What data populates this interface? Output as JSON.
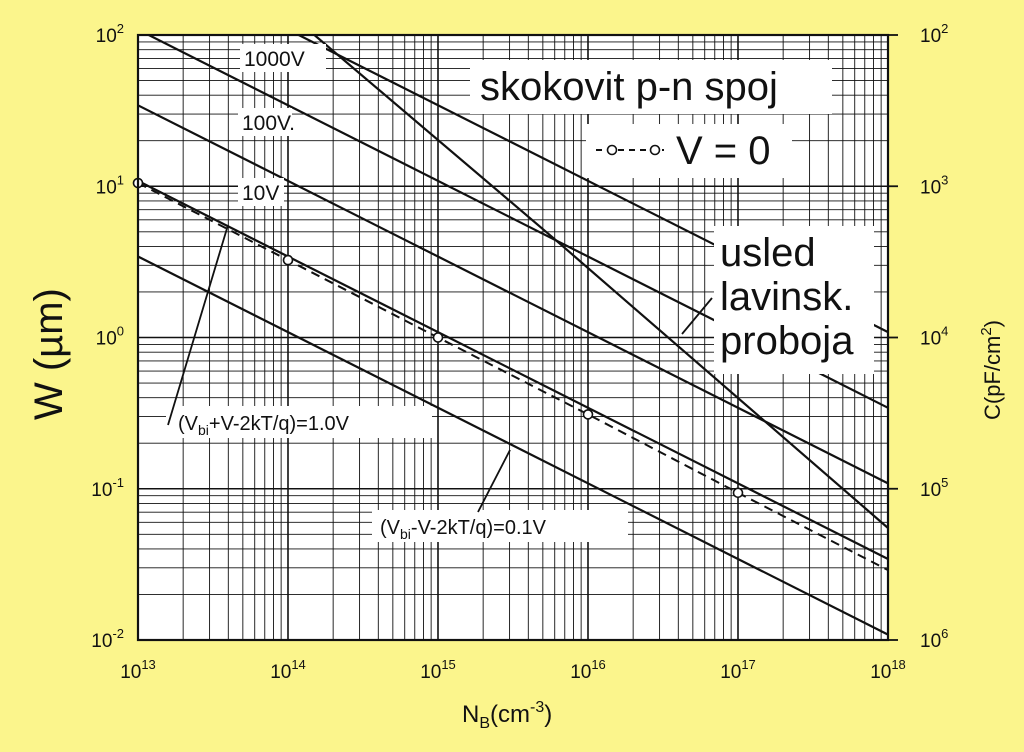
{
  "chart_data": {
    "type": "line",
    "title": "skokovit p-n spoj",
    "xlabel": "N_B(cm^-3)",
    "ylabel": "W (µm)",
    "y2label": "C(pF/cm^2)",
    "x_scale": "log",
    "y_scale": "log",
    "xlim": [
      10000000000000.0,
      1e+18
    ],
    "ylim": [
      0.01,
      100
    ],
    "grid": true,
    "x_ticks": [
      {
        "base": "10",
        "exp": "13"
      },
      {
        "base": "10",
        "exp": "14"
      },
      {
        "base": "10",
        "exp": "15"
      },
      {
        "base": "10",
        "exp": "16"
      },
      {
        "base": "10",
        "exp": "17"
      },
      {
        "base": "10",
        "exp": "18"
      }
    ],
    "y_ticks": [
      {
        "base": "10",
        "exp": "2"
      },
      {
        "base": "10",
        "exp": "1"
      },
      {
        "base": "10",
        "exp": "0"
      },
      {
        "base": "10",
        "exp": "-1"
      },
      {
        "base": "10",
        "exp": "-2"
      }
    ],
    "y2_ticks": [
      {
        "base": "10",
        "exp": "2"
      },
      {
        "base": "10",
        "exp": "3"
      },
      {
        "base": "10",
        "exp": "4"
      },
      {
        "base": "10",
        "exp": "5"
      },
      {
        "base": "10",
        "exp": "6"
      }
    ],
    "legend": {
      "marker_label": "V = 0",
      "placement": "top-right"
    },
    "annotation": "usled lavinsk. proboja",
    "series": [
      {
        "name": "1000V",
        "style": "solid",
        "x": [
          10000000000000.0,
          1e+18
        ],
        "y": [
          343,
          1.085
        ]
      },
      {
        "name": "100V.",
        "style": "solid",
        "x": [
          10000000000000.0,
          1e+18
        ],
        "y": [
          108.5,
          0.343
        ]
      },
      {
        "name": "10V",
        "style": "solid",
        "x": [
          10000000000000.0,
          1e+18
        ],
        "y": [
          34.3,
          0.1085
        ]
      },
      {
        "name": "(Vbi+V-2kT/q)=1.0V",
        "style": "solid",
        "x": [
          10000000000000.0,
          1e+18
        ],
        "y": [
          10.85,
          0.0343
        ]
      },
      {
        "name": "V = 0",
        "style": "dashed",
        "x": [
          10000000000000.0,
          100000000000000.0,
          1000000000000000.0,
          1e+16,
          1e+17,
          1e+18
        ],
        "y": [
          10.5,
          3.25,
          1.0,
          0.31,
          0.094,
          0.029
        ]
      },
      {
        "name": "(Vbi-V-2kT/q)=0.1V",
        "style": "solid",
        "x": [
          10000000000000.0,
          1e+18
        ],
        "y": [
          3.43,
          0.01085
        ]
      },
      {
        "name": "usled lavinsk. proboja",
        "style": "solid",
        "x": [
          150000000000000.0,
          5800000000000000.0,
          1.8e+17,
          1e+18
        ],
        "y": [
          100,
          4.6,
          0.24,
          0.055
        ]
      }
    ],
    "labels": {
      "l1000": "1000V",
      "l100": "100V.",
      "l10": "10V",
      "lp1": [
        "(V",
        "bi",
        "+V-2kT/q)=1.0V"
      ],
      "lp01": [
        "(V",
        "bi",
        "-V-2kT/q)=0.1V"
      ]
    }
  }
}
